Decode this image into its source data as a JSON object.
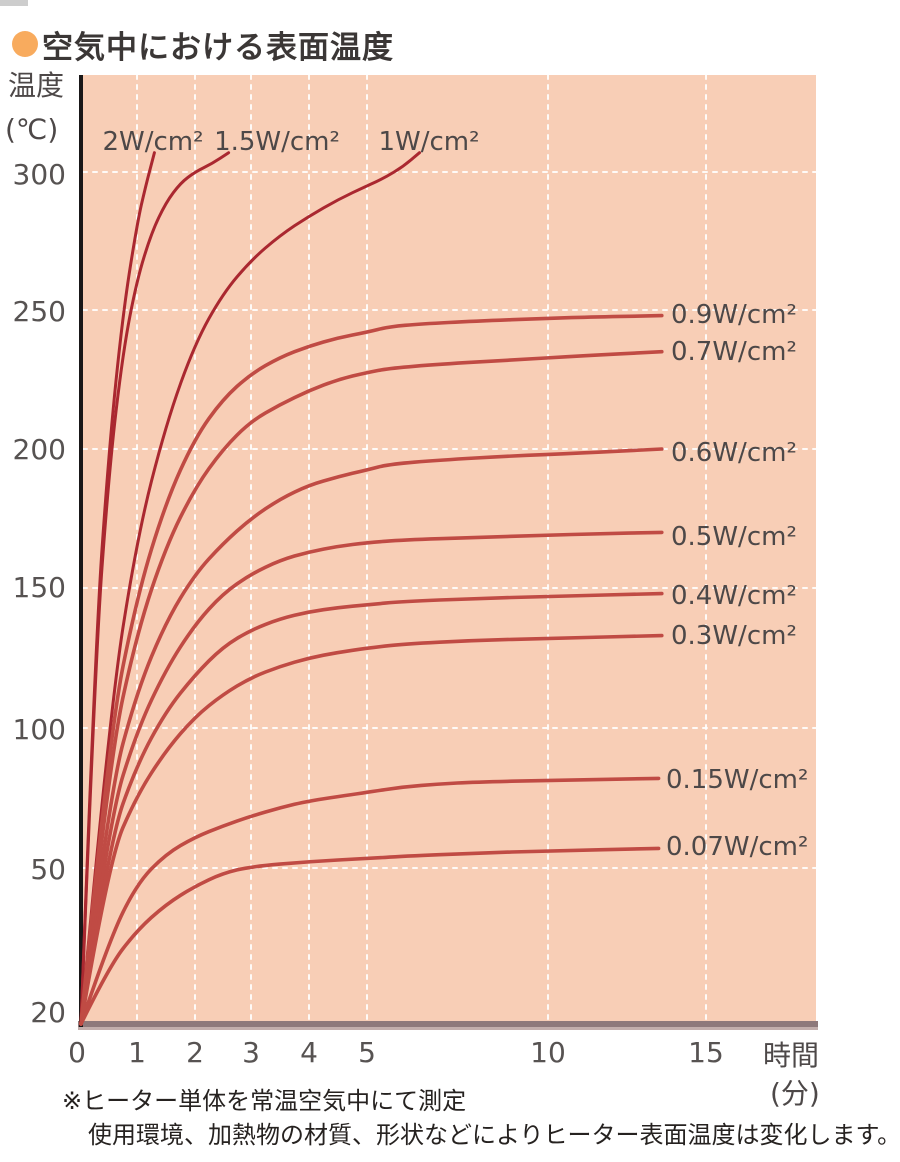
{
  "title": {
    "bullet_color": "#f8ab5e",
    "text": "空気中における表面温度"
  },
  "axis": {
    "y_title": "温度",
    "y_unit": "(℃)",
    "x_title": "時間",
    "x_unit": "(分)"
  },
  "footnote": {
    "line1": "※ヒーター単体を常温空気中にて測定",
    "line2": "使用環境、加熱物の材質、形状などによりヒーター表面温度は変化します。"
  },
  "chart_data": {
    "type": "line",
    "title": "空気中における表面温度",
    "xlabel": "時間(分)",
    "ylabel": "温度(℃)",
    "xlim": [
      0,
      15.6
    ],
    "ylim": [
      20,
      310
    ],
    "x_ticks": [
      0,
      1,
      2,
      3,
      4,
      5,
      10,
      15
    ],
    "y_ticks": [
      300,
      250,
      200,
      150,
      100,
      50,
      20
    ],
    "grid": "white dashed, on plot background",
    "legend_position": "labels at line ends",
    "colors": {
      "plot_bg": "#f8ceb6",
      "grid": "#ffffff",
      "y_axis": "#191718",
      "x_axis_bar": "#8e797b",
      "x_axis_bar_shadow": "#c2aeac",
      "steep_curve": "#aa2830",
      "flat_curve": "#c04b44"
    },
    "series": [
      {
        "label": "2W/cm²",
        "power_w_cm2": 2,
        "color": "#aa2830",
        "width": 3,
        "points": [
          [
            0,
            20
          ],
          [
            0.25,
            128
          ],
          [
            0.5,
            200
          ],
          [
            0.75,
            249
          ],
          [
            1,
            281
          ],
          [
            1.15,
            295
          ],
          [
            1.3,
            307
          ]
        ]
      },
      {
        "label": "1.5W/cm²",
        "power_w_cm2": 1.5,
        "color": "#aa2830",
        "width": 3,
        "points": [
          [
            0,
            20
          ],
          [
            0.25,
            123
          ],
          [
            0.5,
            192
          ],
          [
            0.75,
            235
          ],
          [
            1,
            261
          ],
          [
            1.25,
            278
          ],
          [
            1.5,
            289
          ],
          [
            1.75,
            296
          ],
          [
            2,
            300
          ],
          [
            2.3,
            303
          ],
          [
            2.6,
            307
          ]
        ]
      },
      {
        "label": "1W/cm²",
        "power_w_cm2": 1,
        "color": "#aa2830",
        "width": 3,
        "points": [
          [
            0,
            20
          ],
          [
            0.5,
            104
          ],
          [
            1,
            168
          ],
          [
            1.5,
            209
          ],
          [
            2,
            238
          ],
          [
            2.5,
            256
          ],
          [
            3,
            268
          ],
          [
            3.5,
            277
          ],
          [
            4,
            284
          ],
          [
            4.5,
            290
          ],
          [
            5,
            295
          ],
          [
            5.5,
            298
          ],
          [
            6,
            302
          ],
          [
            6.45,
            307
          ]
        ]
      },
      {
        "label": "0.9W/cm²",
        "power_w_cm2": 0.9,
        "color": "#c04b44",
        "width": 3.6,
        "points": [
          [
            0,
            20
          ],
          [
            0.5,
            97
          ],
          [
            1,
            147
          ],
          [
            1.5,
            181
          ],
          [
            2,
            204
          ],
          [
            2.5,
            218
          ],
          [
            3,
            227
          ],
          [
            3.5,
            233
          ],
          [
            4,
            237
          ],
          [
            4.5,
            240
          ],
          [
            5,
            242
          ],
          [
            5.6,
            244
          ],
          [
            6.5,
            245
          ],
          [
            8,
            246
          ],
          [
            10,
            247
          ],
          [
            11.5,
            247.5
          ],
          [
            13.6,
            248
          ]
        ]
      },
      {
        "label": "0.7W/cm²",
        "power_w_cm2": 0.7,
        "color": "#c04b44",
        "width": 3.6,
        "points": [
          [
            0,
            20
          ],
          [
            0.5,
            88
          ],
          [
            1,
            134
          ],
          [
            1.5,
            165
          ],
          [
            2,
            186
          ],
          [
            2.5,
            200
          ],
          [
            3,
            210
          ],
          [
            3.5,
            216
          ],
          [
            4,
            221
          ],
          [
            4.5,
            225
          ],
          [
            5,
            227.5
          ],
          [
            5.6,
            229
          ],
          [
            7,
            230.5
          ],
          [
            9,
            232
          ],
          [
            11,
            233.5
          ],
          [
            13.6,
            235
          ]
        ]
      },
      {
        "label": "0.6W/cm²",
        "power_w_cm2": 0.6,
        "color": "#c04b44",
        "width": 3.6,
        "points": [
          [
            0,
            20
          ],
          [
            0.5,
            76
          ],
          [
            1,
            113
          ],
          [
            1.5,
            138
          ],
          [
            2,
            155
          ],
          [
            2.5,
            166
          ],
          [
            3,
            175
          ],
          [
            3.5,
            182
          ],
          [
            4,
            187
          ],
          [
            4.5,
            190
          ],
          [
            5,
            192.5
          ],
          [
            5.6,
            194.5
          ],
          [
            7,
            196
          ],
          [
            9,
            197.5
          ],
          [
            11,
            198.5
          ],
          [
            13.6,
            200
          ]
        ]
      },
      {
        "label": "0.5W/cm²",
        "power_w_cm2": 0.5,
        "color": "#c04b44",
        "width": 3.6,
        "points": [
          [
            0,
            20
          ],
          [
            0.5,
            67
          ],
          [
            1,
            99
          ],
          [
            1.5,
            121
          ],
          [
            2,
            137
          ],
          [
            2.5,
            148
          ],
          [
            3,
            155
          ],
          [
            3.5,
            160
          ],
          [
            4,
            163
          ],
          [
            4.5,
            165
          ],
          [
            5,
            166.3
          ],
          [
            6,
            167.3
          ],
          [
            8,
            168.2
          ],
          [
            10,
            169
          ],
          [
            11.5,
            169.5
          ],
          [
            13.6,
            170
          ]
        ]
      },
      {
        "label": "0.4W/cm²",
        "power_w_cm2": 0.4,
        "color": "#c04b44",
        "width": 3.6,
        "points": [
          [
            0,
            20
          ],
          [
            0.5,
            59
          ],
          [
            1,
            87
          ],
          [
            1.5,
            106
          ],
          [
            2,
            119
          ],
          [
            2.5,
            129
          ],
          [
            3,
            135
          ],
          [
            3.5,
            139
          ],
          [
            4,
            141.5
          ],
          [
            4.5,
            143
          ],
          [
            5,
            144
          ],
          [
            6,
            145.2
          ],
          [
            8,
            146.2
          ],
          [
            10,
            147
          ],
          [
            13.6,
            148
          ]
        ]
      },
      {
        "label": "0.3W/cm²",
        "power_w_cm2": 0.3,
        "color": "#c04b44",
        "width": 3.6,
        "points": [
          [
            0,
            20
          ],
          [
            0.5,
            53
          ],
          [
            1,
            76
          ],
          [
            1.5,
            92
          ],
          [
            2,
            104
          ],
          [
            2.5,
            112
          ],
          [
            3,
            118
          ],
          [
            3.5,
            122
          ],
          [
            4,
            125
          ],
          [
            4.5,
            127
          ],
          [
            5,
            128.5
          ],
          [
            6,
            130
          ],
          [
            8,
            131.3
          ],
          [
            10,
            132
          ],
          [
            13.6,
            133
          ]
        ]
      },
      {
        "label": "0.15W/cm²",
        "power_w_cm2": 0.15,
        "color": "#c04b44",
        "width": 3.6,
        "points": [
          [
            0,
            20
          ],
          [
            0.5,
            36
          ],
          [
            1,
            47
          ],
          [
            1.5,
            55
          ],
          [
            2,
            61
          ],
          [
            2.5,
            65
          ],
          [
            3,
            68.5
          ],
          [
            3.5,
            71.5
          ],
          [
            4,
            74
          ],
          [
            5,
            77
          ],
          [
            6,
            79
          ],
          [
            7,
            80
          ],
          [
            8,
            80.7
          ],
          [
            10,
            81.3
          ],
          [
            13.5,
            82
          ]
        ]
      },
      {
        "label": "0.07W/cm²",
        "power_w_cm2": 0.07,
        "color": "#c04b44",
        "width": 3.6,
        "points": [
          [
            0,
            20
          ],
          [
            0.5,
            31
          ],
          [
            1,
            38
          ],
          [
            1.5,
            43
          ],
          [
            2,
            46.5
          ],
          [
            2.5,
            49
          ],
          [
            3,
            50.5
          ],
          [
            4,
            52.3
          ],
          [
            5,
            53.4
          ],
          [
            6,
            54.2
          ],
          [
            8,
            55.3
          ],
          [
            10,
            56.1
          ],
          [
            13.5,
            57
          ]
        ]
      }
    ]
  }
}
